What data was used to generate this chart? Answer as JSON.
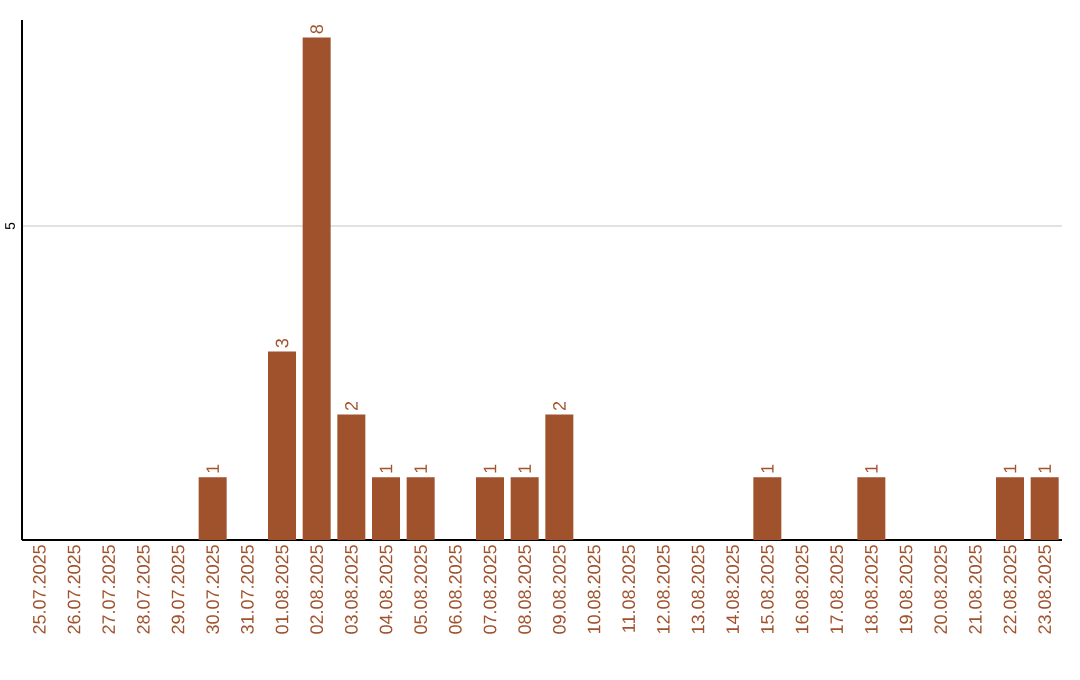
{
  "chart_data": {
    "type": "bar",
    "categories": [
      "25.07.2025",
      "26.07.2025",
      "27.07.2025",
      "28.07.2025",
      "29.07.2025",
      "30.07.2025",
      "31.07.2025",
      "01.08.2025",
      "02.08.2025",
      "03.08.2025",
      "04.08.2025",
      "05.08.2025",
      "06.08.2025",
      "07.08.2025",
      "08.08.2025",
      "09.08.2025",
      "10.08.2025",
      "11.08.2025",
      "12.08.2025",
      "13.08.2025",
      "14.08.2025",
      "15.08.2025",
      "16.08.2025",
      "17.08.2025",
      "18.08.2025",
      "19.08.2025",
      "20.08.2025",
      "21.08.2025",
      "22.08.2025",
      "23.08.2025"
    ],
    "values": [
      0,
      0,
      0,
      0,
      0,
      1,
      0,
      3,
      8,
      2,
      1,
      1,
      0,
      1,
      1,
      2,
      0,
      0,
      0,
      0,
      0,
      1,
      0,
      0,
      1,
      0,
      0,
      0,
      1,
      1
    ],
    "value_labels": [
      null,
      null,
      null,
      null,
      null,
      "1",
      null,
      "3",
      "8",
      "2",
      "1",
      "1",
      null,
      "1",
      "1",
      "2",
      null,
      null,
      null,
      null,
      null,
      "1",
      null,
      null,
      "1",
      null,
      null,
      null,
      "1",
      "1"
    ],
    "color": "#a0522d",
    "ylim": [
      0,
      8.28
    ],
    "yticks": [
      5
    ],
    "grid": "y"
  }
}
